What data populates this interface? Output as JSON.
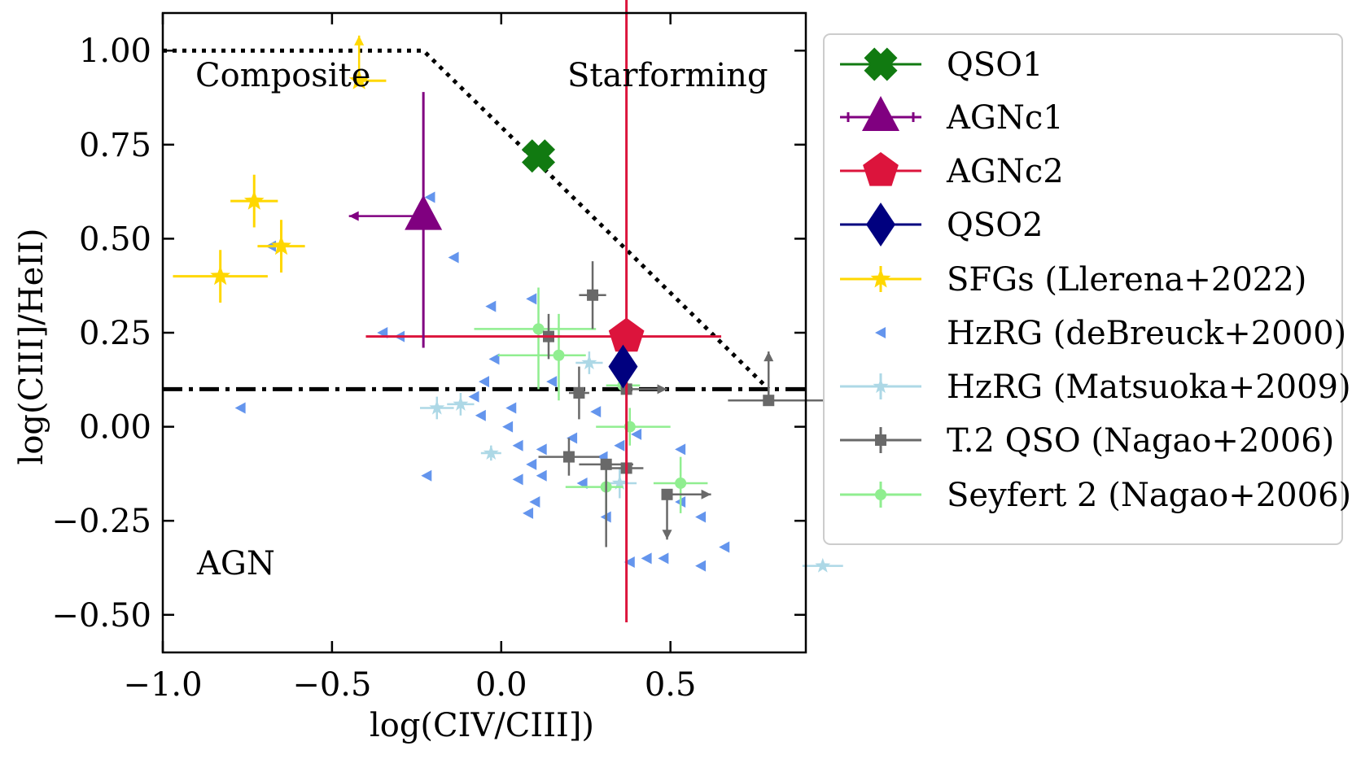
{
  "chart_data": {
    "type": "scatter",
    "xlabel": "log(CIV/CIII])",
    "ylabel": "log(CIII]/HeII)",
    "xlim": [
      -1.0,
      0.9
    ],
    "ylim": [
      -0.6,
      1.1
    ],
    "xticks": [
      -1.0,
      -0.5,
      0.0,
      0.5
    ],
    "xtick_labels": [
      "−1.0",
      "−0.5",
      "0.0",
      "0.5"
    ],
    "yticks": [
      1.0,
      0.75,
      0.5,
      0.25,
      0.0,
      -0.25,
      -0.5
    ],
    "ytick_labels": [
      "1.00",
      "0.75",
      "0.50",
      "0.25",
      "0.00",
      "−0.25",
      "−0.50"
    ],
    "grid": false,
    "legend_position": "outside-right",
    "regions": {
      "composite": "Composite",
      "starforming": "Starforming",
      "agn": "AGN"
    },
    "boundaries": {
      "dotted": [
        [
          -1.0,
          1.0
        ],
        [
          -0.23,
          1.0
        ],
        [
          0.79,
          0.1
        ]
      ],
      "dashdot_y": 0.1
    },
    "colors": {
      "qso1": "#117a11",
      "agnc1": "#800080",
      "agnc2": "#dc143c",
      "qso2": "#00007f",
      "sfg": "#ffd700",
      "hzrg_db": "#6495ed",
      "hzrg_m": "#add8e6",
      "t2qso": "#696969",
      "sey2": "#90ee90"
    },
    "series": [
      {
        "key": "qso1",
        "name": "QSO1",
        "marker": "X",
        "points": [
          {
            "x": 0.11,
            "y": 0.72
          }
        ]
      },
      {
        "key": "agnc1",
        "name": "AGNc1",
        "marker": "triangle",
        "points": [
          {
            "x": -0.23,
            "y": 0.56,
            "yerr": [
              0.35,
              0.33
            ],
            "arrow": "left",
            "arrow_to": -0.45
          }
        ]
      },
      {
        "key": "agnc2",
        "name": "AGNc2",
        "marker": "pentagon",
        "points": [
          {
            "x": 0.37,
            "y": 0.24,
            "xerr": [
              0.77,
              0.28
            ],
            "yerr": [
              0.76,
              0.98
            ]
          }
        ]
      },
      {
        "key": "qso2",
        "name": "QSO2",
        "marker": "diamond",
        "points": [
          {
            "x": 0.36,
            "y": 0.16
          }
        ]
      },
      {
        "key": "sfg",
        "name": "SFGs (Llerena+2022)",
        "marker": "star",
        "points": [
          {
            "x": -0.42,
            "y": 0.92,
            "xerr": [
              0.0,
              0.08
            ],
            "arrow": "up",
            "arrow_to": 1.04
          },
          {
            "x": -0.73,
            "y": 0.6,
            "xerr": [
              0.07,
              0.07
            ],
            "yerr": [
              0.07,
              0.07
            ]
          },
          {
            "x": -0.65,
            "y": 0.48,
            "xerr": [
              0.07,
              0.07
            ],
            "yerr": [
              0.07,
              0.07
            ]
          },
          {
            "x": -0.83,
            "y": 0.4,
            "xerr": [
              0.14,
              0.14
            ],
            "yerr": [
              0.07,
              0.07
            ]
          }
        ]
      },
      {
        "key": "hzrg_db",
        "name": "HzRG (deBreuck+2000)",
        "marker": "left-triangle",
        "points": [
          {
            "x": -0.77,
            "y": 0.05
          },
          {
            "x": -0.68,
            "y": 0.48
          },
          {
            "x": -0.35,
            "y": 0.25
          },
          {
            "x": -0.3,
            "y": 0.24
          },
          {
            "x": -0.21,
            "y": 0.61
          },
          {
            "x": -0.14,
            "y": 0.45
          },
          {
            "x": -0.03,
            "y": 0.32
          },
          {
            "x": -0.06,
            "y": 0.03
          },
          {
            "x": -0.02,
            "y": 0.18
          },
          {
            "x": 0.09,
            "y": 0.34
          },
          {
            "x": -0.05,
            "y": 0.12
          },
          {
            "x": 0.02,
            "y": 0.0
          },
          {
            "x": 0.05,
            "y": -0.05
          },
          {
            "x": 0.09,
            "y": -0.1
          },
          {
            "x": 0.1,
            "y": -0.2
          },
          {
            "x": 0.12,
            "y": -0.13
          },
          {
            "x": 0.08,
            "y": -0.23
          },
          {
            "x": 0.15,
            "y": 0.12
          },
          {
            "x": 0.21,
            "y": -0.03
          },
          {
            "x": 0.24,
            "y": -0.15
          },
          {
            "x": 0.3,
            "y": -0.08
          },
          {
            "x": 0.31,
            "y": -0.24
          },
          {
            "x": 0.35,
            "y": -0.05
          },
          {
            "x": 0.4,
            "y": -0.02
          },
          {
            "x": 0.38,
            "y": -0.36
          },
          {
            "x": 0.43,
            "y": -0.35
          },
          {
            "x": 0.48,
            "y": -0.35
          },
          {
            "x": 0.53,
            "y": -0.06
          },
          {
            "x": 0.53,
            "y": -0.2
          },
          {
            "x": 0.59,
            "y": -0.24
          },
          {
            "x": 0.59,
            "y": -0.37
          },
          {
            "x": 0.66,
            "y": -0.32
          },
          {
            "x": -0.22,
            "y": -0.13
          },
          {
            "x": 0.05,
            "y": -0.14
          },
          {
            "x": 0.12,
            "y": -0.06
          },
          {
            "x": -0.08,
            "y": 0.08
          },
          {
            "x": 0.28,
            "y": 0.04
          },
          {
            "x": 0.03,
            "y": 0.05
          }
        ]
      },
      {
        "key": "hzrg_m",
        "name": "HzRG (Matsuoka+2009)",
        "marker": "star-small",
        "points": [
          {
            "x": -0.19,
            "y": 0.05,
            "xerr": [
              0.05,
              0.05
            ],
            "yerr": [
              0.03,
              0.03
            ]
          },
          {
            "x": -0.12,
            "y": 0.06,
            "xerr": [
              0.04,
              0.04
            ],
            "yerr": [
              0.03,
              0.03
            ]
          },
          {
            "x": -0.03,
            "y": -0.07,
            "xerr": [
              0.03,
              0.03
            ],
            "yerr": [
              0.02,
              0.02
            ]
          },
          {
            "x": 0.26,
            "y": 0.17,
            "xerr": [
              0.04,
              0.04
            ],
            "yerr": [
              0.03,
              0.03
            ]
          },
          {
            "x": 0.35,
            "y": -0.15,
            "xerr": [
              0.05,
              0.05
            ],
            "yerr": [
              0.04,
              0.04
            ]
          },
          {
            "x": 0.95,
            "y": -0.37,
            "xerr": [
              0.06,
              0.06
            ],
            "yerr": [
              0.0,
              0.0
            ]
          }
        ]
      },
      {
        "key": "t2qso",
        "name": "T.2 QSO (Nagao+2006)",
        "marker": "square",
        "points": [
          {
            "x": 0.27,
            "y": 0.35,
            "xerr": [
              0.04,
              0.04
            ],
            "yerr": [
              0.09,
              0.09
            ]
          },
          {
            "x": 0.14,
            "y": 0.24,
            "xerr": [
              0.04,
              0.04
            ],
            "yerr": [
              0.06,
              0.06
            ]
          },
          {
            "x": 0.23,
            "y": 0.09,
            "xerr": [
              0.03,
              0.03
            ],
            "yerr": [
              0.07,
              0.07
            ]
          },
          {
            "x": 0.2,
            "y": -0.08,
            "xerr": [
              0.09,
              0.09
            ],
            "yerr": [
              0.05,
              0.05
            ]
          },
          {
            "x": 0.31,
            "y": -0.1,
            "xerr": [
              0.08,
              0.08
            ],
            "yerr": [
              0.22,
              0.0
            ]
          },
          {
            "x": 0.37,
            "y": -0.11,
            "xerr": [
              0.05,
              0.05
            ],
            "yerr": [
              0.0,
              0.0
            ]
          },
          {
            "x": 0.49,
            "y": -0.18,
            "arrow": "right-down",
            "arrow_to_x": 0.62,
            "arrow_to_y": -0.3
          },
          {
            "x": 0.79,
            "y": 0.07,
            "xerr": [
              0.12,
              0.18
            ],
            "arrow": "up",
            "arrow_to": 0.2
          },
          {
            "x": 0.37,
            "y": 0.1,
            "arrow": "right",
            "arrow_to": 0.49
          }
        ]
      },
      {
        "key": "sey2",
        "name": "Seyfert 2 (Nagao+2006)",
        "marker": "circle",
        "points": [
          {
            "x": 0.11,
            "y": 0.26,
            "xerr": [
              0.19,
              0.17
            ],
            "yerr": [
              0.16,
              0.11
            ]
          },
          {
            "x": 0.17,
            "y": 0.19,
            "xerr": [
              0.18,
              0.08
            ],
            "yerr": [
              0.12,
              0.11
            ]
          },
          {
            "x": 0.36,
            "y": 0.11,
            "xerr": [
              0.05,
              0.05
            ],
            "yerr": [
              0.0,
              0.0
            ]
          },
          {
            "x": 0.38,
            "y": 0.0,
            "xerr": [
              0.1,
              0.12
            ],
            "yerr": [
              0.05,
              0.05
            ]
          },
          {
            "x": 0.31,
            "y": -0.16,
            "xerr": [
              0.12,
              0.05
            ],
            "yerr": [
              0.09,
              0.06
            ]
          },
          {
            "x": 0.53,
            "y": -0.15,
            "xerr": [
              0.08,
              0.08
            ],
            "yerr": [
              0.08,
              0.07
            ]
          }
        ]
      }
    ]
  }
}
